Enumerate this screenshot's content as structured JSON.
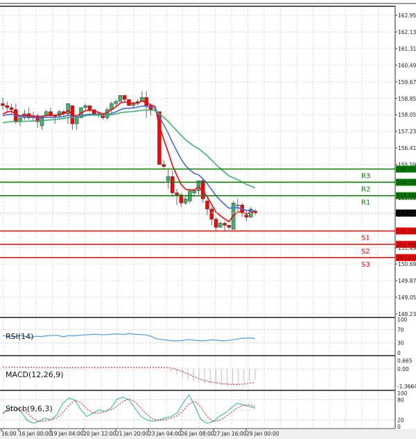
{
  "chart_data": {
    "type": "candlestick",
    "title": "",
    "xlabel": "",
    "ylabel": "",
    "price_axis": {
      "ticks": [
        "162.950",
        "162.130",
        "161.310",
        "160.490",
        "159.670",
        "158.850",
        "158.050",
        "157.230",
        "156.410",
        "155.590",
        "154.770",
        "153.950",
        "153.130",
        "152.310",
        "151.490",
        "150.690",
        "149.870",
        "149.050",
        "148.230"
      ],
      "ylim": [
        148.23,
        163.2
      ]
    },
    "time_axis": {
      "ticks": [
        "16:00",
        "16 Jan 00:00",
        "19 Jan 04:00",
        "20 Jan 12:00",
        "21 Jan 20:00",
        "23 Jan 04:00",
        "26 Jan 08:00",
        "27 Jan 16:00",
        "29 Jan 00:00"
      ]
    },
    "current_price": "153.205",
    "levels": {
      "resistance": [
        {
          "name": "R3",
          "value": "155.370"
        },
        {
          "name": "R2",
          "value": "154.720"
        },
        {
          "name": "R1",
          "value": "154.060"
        }
      ],
      "support": [
        {
          "name": "S1",
          "value": "152.320"
        },
        {
          "name": "S2",
          "value": "151.660"
        },
        {
          "name": "S3",
          "value": "151.010"
        }
      ]
    },
    "moving_averages": [
      {
        "name": "fast",
        "color": "#ff0000"
      },
      {
        "name": "medium",
        "color": "#4169e1"
      },
      {
        "name": "slow",
        "color": "#3cb371"
      }
    ],
    "candles_ohlc": [
      [
        158.6,
        158.9,
        158.3,
        158.5
      ],
      [
        158.5,
        158.7,
        158.2,
        158.4
      ],
      [
        158.4,
        158.6,
        158.1,
        158.3
      ],
      [
        158.3,
        158.6,
        157.6,
        157.7
      ],
      [
        157.7,
        158.0,
        157.5,
        157.9
      ],
      [
        157.9,
        158.3,
        157.8,
        158.1
      ],
      [
        158.1,
        158.4,
        157.8,
        157.9
      ],
      [
        157.9,
        158.2,
        157.7,
        158.0
      ],
      [
        158.0,
        158.1,
        157.4,
        157.7
      ],
      [
        157.5,
        158.0,
        157.3,
        158.0
      ],
      [
        158.0,
        158.3,
        157.9,
        158.2
      ],
      [
        158.2,
        158.4,
        157.9,
        158.0
      ],
      [
        158.0,
        158.1,
        157.6,
        158.0
      ],
      [
        158.0,
        158.3,
        157.8,
        158.2
      ],
      [
        158.2,
        158.3,
        157.9,
        158.1
      ],
      [
        158.1,
        158.5,
        157.6,
        158.6
      ],
      [
        158.5,
        158.5,
        157.3,
        157.6
      ],
      [
        157.6,
        158.0,
        157.3,
        157.9
      ],
      [
        157.9,
        158.4,
        157.9,
        158.4
      ],
      [
        158.4,
        158.6,
        158.2,
        158.5
      ],
      [
        158.5,
        158.5,
        158.2,
        158.3
      ],
      [
        158.3,
        158.3,
        158.0,
        158.1
      ],
      [
        158.1,
        158.2,
        157.9,
        158.1
      ],
      [
        158.1,
        158.1,
        157.8,
        157.9
      ],
      [
        157.9,
        158.4,
        157.8,
        158.3
      ],
      [
        158.3,
        158.7,
        158.1,
        158.6
      ],
      [
        158.6,
        158.8,
        158.4,
        158.7
      ],
      [
        158.7,
        159.0,
        158.7,
        159.0
      ],
      [
        159.0,
        159.0,
        158.7,
        158.8
      ],
      [
        158.8,
        158.8,
        158.5,
        158.5
      ],
      [
        158.5,
        158.7,
        158.4,
        158.6
      ],
      [
        158.6,
        158.8,
        158.5,
        158.7
      ],
      [
        158.7,
        159.2,
        158.7,
        158.9
      ],
      [
        158.9,
        159.2,
        157.9,
        158.5
      ],
      [
        158.5,
        158.6,
        158.0,
        158.3
      ],
      [
        158.3,
        158.4,
        158.2,
        158.3
      ],
      [
        158.2,
        158.2,
        155.6,
        155.6
      ],
      [
        155.6,
        155.8,
        155.4,
        155.5
      ],
      [
        154.8,
        155.4,
        154.4,
        155.0
      ],
      [
        155.0,
        155.3,
        154.0,
        154.2
      ],
      [
        154.2,
        154.4,
        153.6,
        154.1
      ],
      [
        154.1,
        154.2,
        153.5,
        153.7
      ],
      [
        153.7,
        154.1,
        153.6,
        153.9
      ],
      [
        153.8,
        154.4,
        153.7,
        154.3
      ],
      [
        154.2,
        154.4,
        154.0,
        154.3
      ],
      [
        154.3,
        154.8,
        154.1,
        154.8
      ],
      [
        154.8,
        154.9,
        153.7,
        153.9
      ],
      [
        153.8,
        153.9,
        153.1,
        153.4
      ],
      [
        153.4,
        153.5,
        152.6,
        152.9
      ],
      [
        152.9,
        153.0,
        152.3,
        152.5
      ],
      [
        152.5,
        152.8,
        152.5,
        152.7
      ],
      [
        152.7,
        152.8,
        152.3,
        152.6
      ],
      [
        152.6,
        152.6,
        152.4,
        152.5
      ],
      [
        152.4,
        153.8,
        152.4,
        153.7
      ],
      [
        153.6,
        153.9,
        153.3,
        153.6
      ],
      [
        153.6,
        153.7,
        153.0,
        153.2
      ],
      [
        153.1,
        153.3,
        152.8,
        153.0
      ],
      [
        153.0,
        153.5,
        153.0,
        153.4
      ],
      [
        153.3,
        153.4,
        153.1,
        153.2
      ]
    ]
  },
  "indicators": {
    "rsi": {
      "label": "RSI(14)",
      "ticks": [
        "100",
        "70",
        "30",
        "0"
      ],
      "color": "#4a9fe8"
    },
    "macd": {
      "label": "MACD(12,26,9)",
      "ticks": [
        "0.665",
        "0.00",
        "-1.3664"
      ],
      "signal_color": "#e03030",
      "hist_color": "#c8c8c8"
    },
    "stoch": {
      "label": "Stoch(9,6,3)",
      "ticks": [
        "100",
        "80",
        "20",
        "0"
      ],
      "main_color": "#40c0b0",
      "signal_color": "#e03030"
    }
  },
  "colors": {
    "bull": "#3cb371",
    "bear": "#ff0000",
    "resistance": "#008000",
    "support": "#ff0000",
    "current_price_bg": "#000000",
    "grid": "#d8d8d8"
  }
}
